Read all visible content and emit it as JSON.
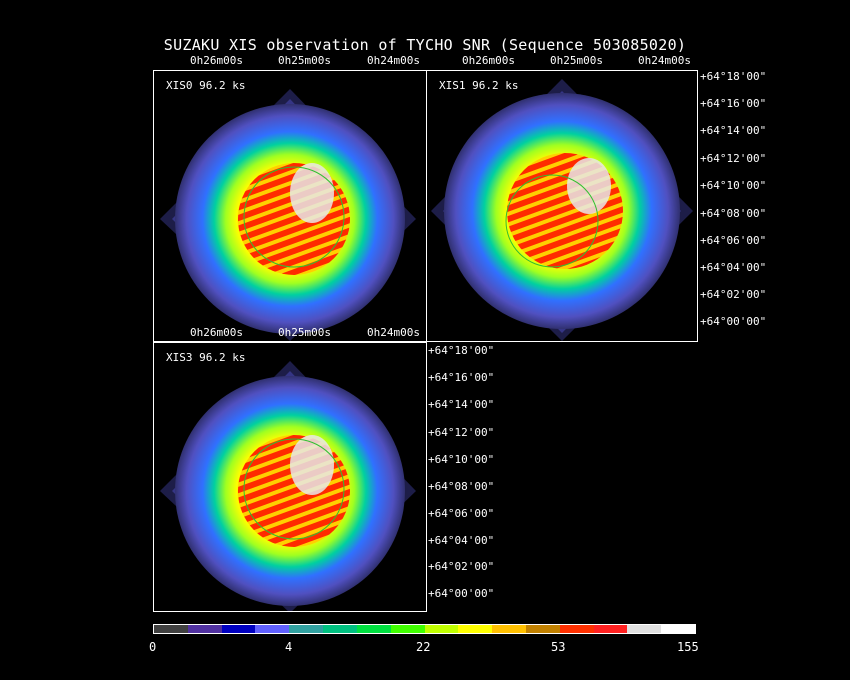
{
  "title": "SUZAKU XIS observation of TYCHO SNR  (Sequence 503085020)",
  "panels": [
    {
      "label": "XIS0 96.2 ks"
    },
    {
      "label": "XIS1 96.2 ks"
    },
    {
      "label": "XIS3 96.2 ks"
    }
  ],
  "ra_ticks": [
    "0h26m00s",
    "0h25m00s",
    "0h24m00s"
  ],
  "dec_ticks": [
    "+64°18'00\"",
    "+64°16'00\"",
    "+64°14'00\"",
    "+64°12'00\"",
    "+64°10'00\"",
    "+64°08'00\"",
    "+64°06'00\"",
    "+64°04'00\"",
    "+64°02'00\"",
    "+64°00'00\""
  ],
  "colorbar": {
    "labels": [
      "0",
      "4",
      "22",
      "53",
      "155"
    ],
    "colors": [
      "#404040",
      "#5030a0",
      "#0000c0",
      "#6060ff",
      "#30a0a0",
      "#00c080",
      "#00e040",
      "#40ff00",
      "#c0ff00",
      "#ffff00",
      "#ffc000",
      "#c08000",
      "#ff3000",
      "#ff2020",
      "#e0e0e0",
      "#ffffff"
    ]
  }
}
